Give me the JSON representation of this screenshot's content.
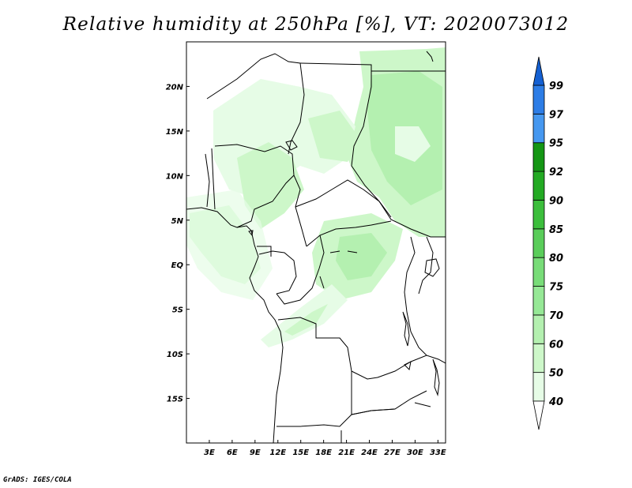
{
  "title": "Relative humidity at 250hPa [%], VT: 2020073012",
  "credit": "GrADS: IGES/COLA",
  "map": {
    "lon_range": [
      0,
      34
    ],
    "lat_range": [
      -20,
      25
    ],
    "lat_ticks": [
      {
        "value": 20,
        "label": "20N"
      },
      {
        "value": 15,
        "label": "15N"
      },
      {
        "value": 10,
        "label": "10N"
      },
      {
        "value": 5,
        "label": "5N"
      },
      {
        "value": 0,
        "label": "EQ"
      },
      {
        "value": -5,
        "label": "5S"
      },
      {
        "value": -10,
        "label": "10S"
      },
      {
        "value": -15,
        "label": "15S"
      }
    ],
    "lon_ticks": [
      {
        "value": 3,
        "label": "3E"
      },
      {
        "value": 6,
        "label": "6E"
      },
      {
        "value": 9,
        "label": "9E"
      },
      {
        "value": 12,
        "label": "12E"
      },
      {
        "value": 15,
        "label": "15E"
      },
      {
        "value": 18,
        "label": "18E"
      },
      {
        "value": 21,
        "label": "21E"
      },
      {
        "value": 24,
        "label": "24E"
      },
      {
        "value": 27,
        "label": "27E"
      },
      {
        "value": 30,
        "label": "30E"
      },
      {
        "value": 33,
        "label": "33E"
      }
    ]
  },
  "colorbar": {
    "levels": [
      "40",
      "50",
      "60",
      "70",
      "75",
      "80",
      "85",
      "90",
      "92",
      "95",
      "97",
      "99"
    ],
    "colors": [
      "#ffffff",
      "#e6fce6",
      "#cdf7c9",
      "#b4f0b0",
      "#96e896",
      "#78dc78",
      "#5acd5a",
      "#3cbe3c",
      "#23aa23",
      "#149614",
      "#4698f0",
      "#2d7de6",
      "#1460d2"
    ]
  }
}
